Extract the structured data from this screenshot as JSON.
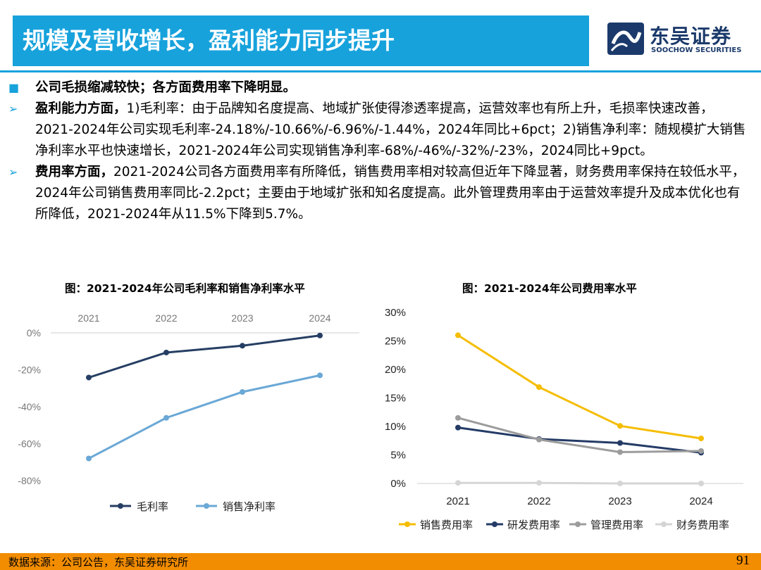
{
  "header": {
    "title": "规模及营收增长，盈利能力同步提升",
    "logo_name": "东吴证券",
    "logo_en": "SOOCHOW SECURITIES"
  },
  "content": {
    "heading": "公司毛损缩减较快；各方面费用率下降明显。",
    "p1_bold": "盈利能力方面，",
    "p1_text": "1)毛利率：由于品牌知名度提高、地域扩张使得渗透率提高，运营效率也有所上升，毛损率快速改善，2021-2024年公司实现毛利率-24.18%/-10.66%/-6.96%/-1.44%，2024年同比+6pct；2)销售净利率：随规模扩大销售净利率水平也快速增长，2021-2024年公司实现销售净利率-68%/-46%/-32%/-23%，2024同比+9pct。",
    "p2_bold": "费用率方面，",
    "p2_text": "2021-2024公司各方面费用率有所降低，销售费用率相对较高但近年下降显著，财务费用率保持在较低水平，2024年公司销售费用率同比-2.2pct；主要由于地域扩张和知名度提高。此外管理费用率由于运营效率提升及成本优化也有所降低，2021-2024年从11.5%下降到5.7%。"
  },
  "footer": {
    "source": "数据来源：公司公告，东吴证券研究所",
    "page": "91"
  },
  "colors": {
    "brand": "#17a2dc",
    "footer": "#f28c00",
    "logo": "#1b3a6b"
  },
  "chart_data": [
    {
      "type": "line",
      "title": "图：2021-2024年公司毛利率和销售净利率水平",
      "categories": [
        "2021",
        "2022",
        "2023",
        "2024"
      ],
      "y_ticks": [
        "0%",
        "-20%",
        "-40%",
        "-60%",
        "-80%"
      ],
      "ylim": [
        -80,
        0
      ],
      "x_axis_position": "top",
      "series": [
        {
          "name": "毛利率",
          "values": [
            -24.18,
            -10.66,
            -6.96,
            -1.44
          ],
          "color": "#263e63"
        },
        {
          "name": "销售净利率",
          "values": [
            -68,
            -46,
            -32,
            -23
          ],
          "color": "#6aa8d6"
        }
      ],
      "legend": "bottom"
    },
    {
      "type": "line",
      "title": "图：2021-2024年公司费用率水平",
      "categories": [
        "2021",
        "2022",
        "2023",
        "2024"
      ],
      "y_ticks": [
        "30%",
        "25%",
        "20%",
        "15%",
        "10%",
        "5%",
        "0%"
      ],
      "ylim": [
        0,
        30
      ],
      "series": [
        {
          "name": "销售费用率",
          "values": [
            26.0,
            16.9,
            10.1,
            7.9
          ],
          "color": "#f5bd00"
        },
        {
          "name": "研发费用率",
          "values": [
            9.8,
            7.8,
            7.1,
            5.4
          ],
          "color": "#243b66"
        },
        {
          "name": "管理费用率",
          "values": [
            11.5,
            7.7,
            5.5,
            5.7
          ],
          "color": "#9c9c9c"
        },
        {
          "name": "财务费用率",
          "values": [
            0.1,
            0.1,
            0.0,
            0.0
          ],
          "color": "#d5d5d5"
        }
      ],
      "legend": "bottom"
    }
  ]
}
